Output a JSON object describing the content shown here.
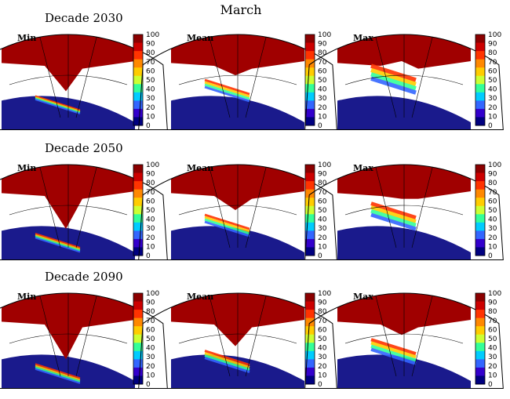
{
  "title": "March",
  "rows": [
    {
      "decade_label": "Decade 2030",
      "panels": [
        {
          "label": "Min",
          "ice_edge": 0.62,
          "band": 0.05
        },
        {
          "label": "Mean",
          "ice_edge": 0.45,
          "band": 0.1
        },
        {
          "label": "Max",
          "ice_edge": 0.3,
          "band": 0.18
        }
      ]
    },
    {
      "decade_label": "Decade 2050",
      "panels": [
        {
          "label": "Min",
          "ice_edge": 0.7,
          "band": 0.06
        },
        {
          "label": "Mean",
          "ice_edge": 0.5,
          "band": 0.1
        },
        {
          "label": "Max",
          "ice_edge": 0.38,
          "band": 0.16
        }
      ]
    },
    {
      "decade_label": "Decade 2090",
      "panels": [
        {
          "label": "Min",
          "ice_edge": 0.72,
          "band": 0.07
        },
        {
          "label": "Mean",
          "ice_edge": 0.58,
          "band": 0.1
        },
        {
          "label": "Max",
          "ice_edge": 0.46,
          "band": 0.14
        }
      ]
    }
  ],
  "colorbar": {
    "ticks": [
      "100",
      "90",
      "80",
      "70",
      "60",
      "50",
      "40",
      "30",
      "20",
      "10",
      "0"
    ],
    "colors": [
      "#8b0000",
      "#cc0000",
      "#ff3300",
      "#ff8800",
      "#ffcc00",
      "#ccff33",
      "#33ff99",
      "#00ccff",
      "#3366ff",
      "#3300cc",
      "#000080"
    ]
  },
  "colors": {
    "ocean": "#1a1a8c",
    "ice": "#a00000",
    "land": "#ffffff",
    "grid": "#000000"
  }
}
